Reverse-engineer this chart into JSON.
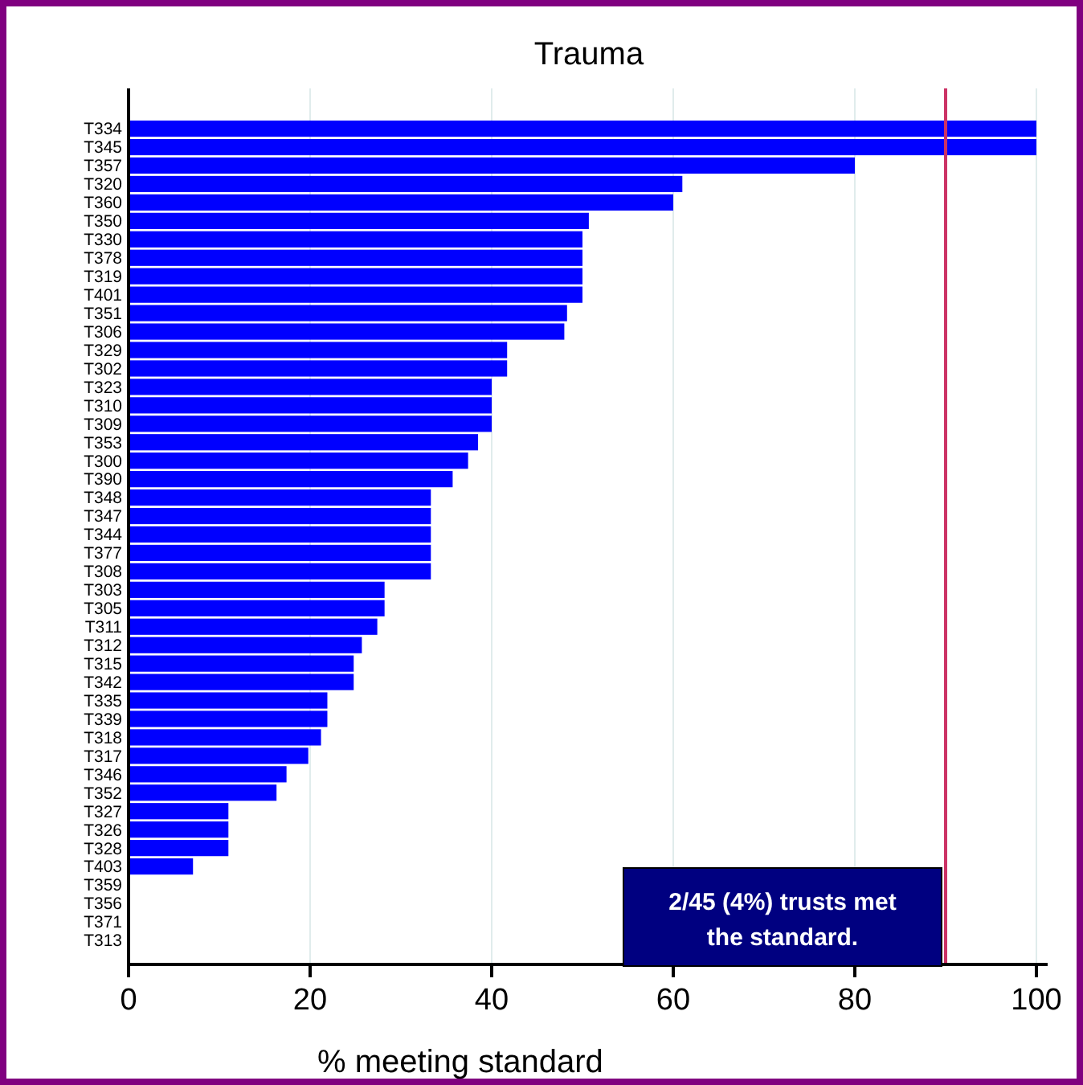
{
  "chart_data": {
    "type": "bar",
    "orientation": "horizontal",
    "title": "Trauma",
    "xlabel": "% meeting standard",
    "categories": [
      "T334",
      "T345",
      "T357",
      "T320",
      "T360",
      "T350",
      "T330",
      "T378",
      "T319",
      "T401",
      "T351",
      "T306",
      "T329",
      "T302",
      "T323",
      "T310",
      "T309",
      "T353",
      "T300",
      "T390",
      "T348",
      "T347",
      "T344",
      "T377",
      "T308",
      "T303",
      "T305",
      "T311",
      "T312",
      "T315",
      "T342",
      "T335",
      "T339",
      "T318",
      "T317",
      "T346",
      "T352",
      "T327",
      "T326",
      "T328",
      "T403",
      "T359",
      "T356",
      "T371",
      "T313"
    ],
    "values": [
      100,
      100,
      80,
      61,
      60,
      50.7,
      50,
      50,
      50,
      50,
      48.3,
      48,
      41.7,
      41.7,
      40,
      40,
      40,
      38.5,
      37.4,
      35.7,
      33.3,
      33.3,
      33.3,
      33.3,
      33.3,
      28.2,
      28.2,
      27.4,
      25.7,
      24.8,
      24.8,
      21.9,
      21.9,
      21.2,
      19.8,
      17.4,
      16.3,
      11,
      11,
      11,
      7.1,
      0,
      0,
      0,
      0
    ],
    "color": "#0000ff",
    "xlim": [
      0,
      100
    ],
    "xticks": [
      0,
      20,
      40,
      60,
      80,
      100
    ],
    "grid": "x",
    "ref_lines": [
      {
        "axis": "x",
        "value": 90,
        "color": "#cc3366"
      }
    ],
    "annotations": [
      "2/45 (4%) trusts met the standard."
    ]
  }
}
